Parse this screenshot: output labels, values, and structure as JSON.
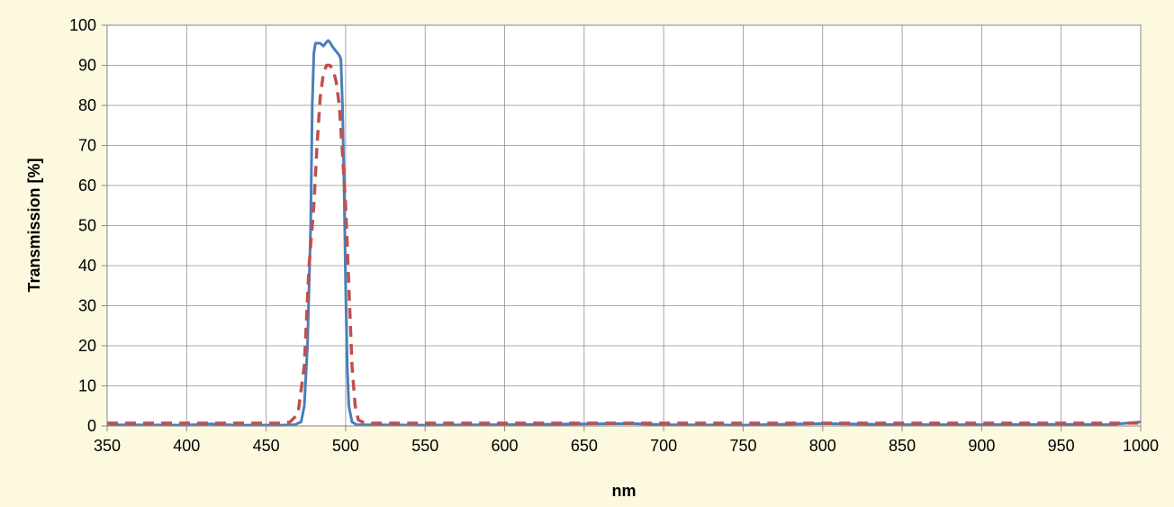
{
  "chart_data": {
    "type": "line",
    "title": "",
    "xlabel": "nm",
    "ylabel": "Transmission [%]",
    "xlim": [
      350,
      1000
    ],
    "ylim": [
      0,
      100
    ],
    "x_ticks": [
      "350",
      "400",
      "450",
      "500",
      "550",
      "600",
      "650",
      "700",
      "750",
      "800",
      "850",
      "900",
      "950",
      "1000"
    ],
    "y_ticks": [
      "0",
      "10",
      "20",
      "30",
      "40",
      "50",
      "60",
      "70",
      "80",
      "90",
      "100"
    ],
    "grid": true,
    "legend": "none",
    "series": [
      {
        "color": "#4a7ebb",
        "style": "solid",
        "points": [
          [
            350,
            0.3
          ],
          [
            400,
            0.2
          ],
          [
            415,
            0.5
          ],
          [
            430,
            0.2
          ],
          [
            460,
            0.2
          ],
          [
            468,
            0.3
          ],
          [
            472,
            1
          ],
          [
            474,
            5
          ],
          [
            476,
            20
          ],
          [
            478,
            50
          ],
          [
            479,
            80
          ],
          [
            480,
            93
          ],
          [
            481,
            95.5
          ],
          [
            484,
            95.5
          ],
          [
            486,
            94.8
          ],
          [
            488,
            95.8
          ],
          [
            489,
            96.2
          ],
          [
            490,
            95.8
          ],
          [
            492,
            94.5
          ],
          [
            494,
            93.5
          ],
          [
            496,
            92.5
          ],
          [
            497,
            91.5
          ],
          [
            498,
            80
          ],
          [
            499,
            60
          ],
          [
            500,
            35
          ],
          [
            501,
            15
          ],
          [
            502,
            5
          ],
          [
            504,
            1
          ],
          [
            507,
            0.3
          ],
          [
            550,
            0.2
          ],
          [
            600,
            0.3
          ],
          [
            650,
            0.5
          ],
          [
            680,
            0.6
          ],
          [
            700,
            0.3
          ],
          [
            750,
            0.2
          ],
          [
            800,
            0.6
          ],
          [
            850,
            0.3
          ],
          [
            900,
            0.3
          ],
          [
            950,
            0.4
          ],
          [
            980,
            0.3
          ],
          [
            1000,
            1.0
          ]
        ]
      },
      {
        "color": "#c0504d",
        "style": "dashed",
        "points": [
          [
            350,
            0.7
          ],
          [
            460,
            0.7
          ],
          [
            465,
            1
          ],
          [
            470,
            3
          ],
          [
            474,
            15
          ],
          [
            477,
            40
          ],
          [
            480,
            55
          ],
          [
            482,
            70
          ],
          [
            484,
            82
          ],
          [
            486,
            88
          ],
          [
            488,
            90
          ],
          [
            490,
            90
          ],
          [
            492,
            89
          ],
          [
            494,
            86
          ],
          [
            496,
            80
          ],
          [
            498,
            68
          ],
          [
            500,
            55
          ],
          [
            502,
            35
          ],
          [
            504,
            15
          ],
          [
            506,
            5
          ],
          [
            508,
            1.5
          ],
          [
            512,
            0.7
          ],
          [
            1000,
            0.7
          ]
        ]
      }
    ]
  }
}
